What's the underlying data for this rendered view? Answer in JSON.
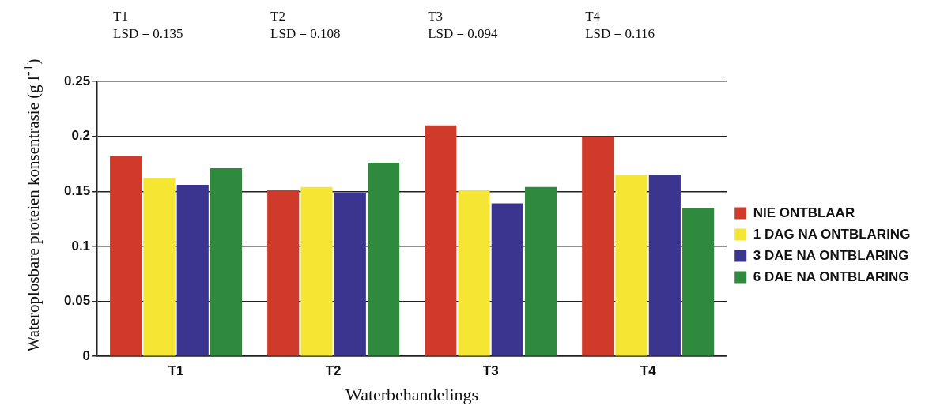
{
  "chart_data": {
    "type": "bar",
    "xlabel": "Waterbehandelings",
    "ylabel": "Wateroplosbare proteien konsentrasie (g l$^{-1}$)",
    "categories": [
      "T1",
      "T2",
      "T3",
      "T4"
    ],
    "series": [
      {
        "name": "NIE ONTBLAAR",
        "color": "#d03a2a",
        "values": [
          0.182,
          0.151,
          0.21,
          0.2
        ]
      },
      {
        "name": "1 DAG NA ONTBLARING",
        "color": "#f5e633",
        "values": [
          0.162,
          0.154,
          0.151,
          0.165
        ]
      },
      {
        "name": "3 DAE NA ONTBLARING",
        "color": "#3c3590",
        "values": [
          0.156,
          0.149,
          0.139,
          0.165
        ]
      },
      {
        "name": "6 DAE NA ONTBLARING",
        "color": "#2f8a3e",
        "values": [
          0.171,
          0.176,
          0.154,
          0.135
        ]
      }
    ],
    "ylim": [
      0,
      0.25
    ],
    "yticks": [
      0,
      0.05,
      0.1,
      0.15,
      0.2,
      0.25
    ],
    "grid": "y",
    "legend": "right",
    "annotations": [
      "T1\nLSD = 0.135",
      "T2\nLSD = 0.108",
      "T3\nLSD = 0.094",
      "T4\nLSD = 0.116"
    ]
  }
}
